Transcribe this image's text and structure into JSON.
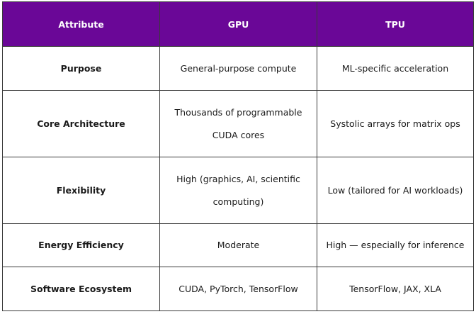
{
  "table": {
    "headers": [
      "Attribute",
      "GPU",
      "TPU"
    ],
    "rows": [
      {
        "attribute": "Purpose",
        "gpu": "General-purpose compute",
        "tpu": "ML-specific acceleration"
      },
      {
        "attribute": "Core Architecture",
        "gpu": "Thousands of programmable CUDA cores",
        "tpu": "Systolic arrays for matrix ops"
      },
      {
        "attribute": "Flexibility",
        "gpu": "High (graphics, AI, scientific computing)",
        "tpu": "Low (tailored for AI workloads)"
      },
      {
        "attribute": "Energy Efficiency",
        "gpu": "Moderate",
        "tpu": "High — especially for inference"
      },
      {
        "attribute": "Software Ecosystem",
        "gpu": "CUDA, PyTorch, TensorFlow",
        "tpu": "TensorFlow, JAX, XLA"
      }
    ]
  },
  "colors": {
    "header_background": "#6a0797",
    "header_text": "#ffffff",
    "border": "#3a3a3a"
  }
}
